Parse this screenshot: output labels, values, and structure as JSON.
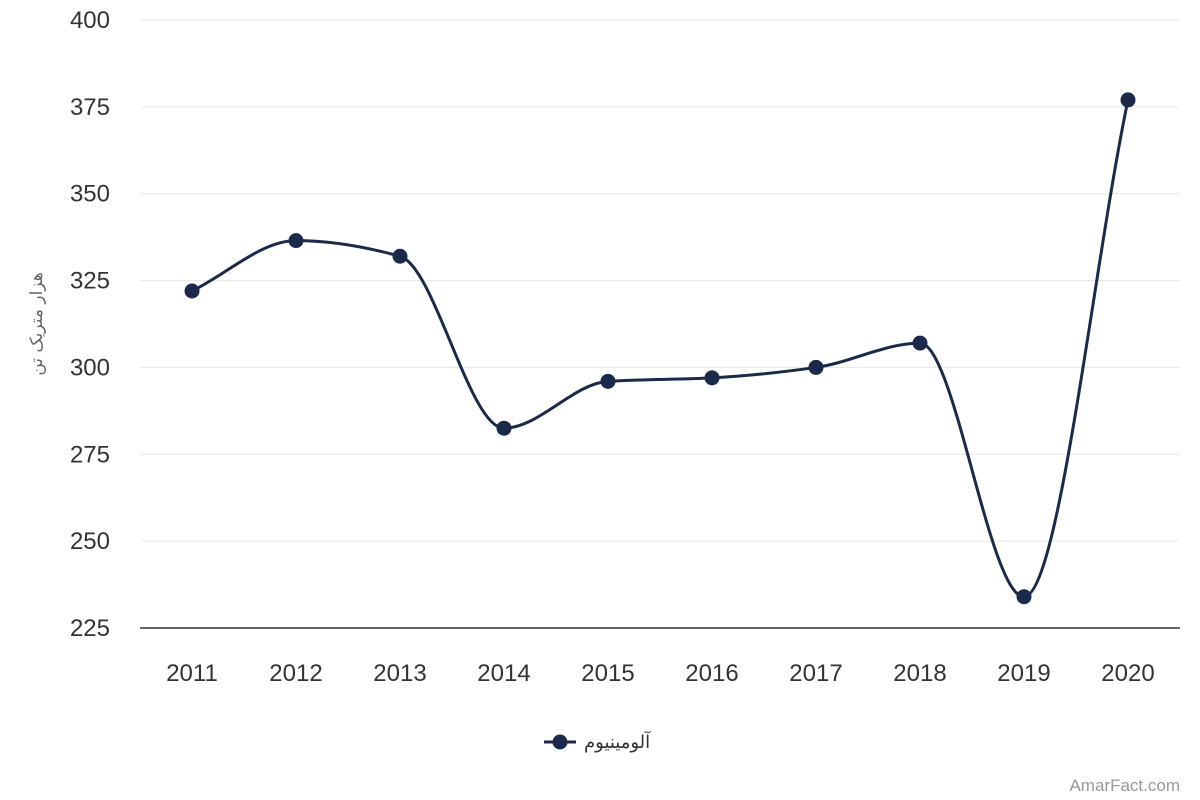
{
  "chart_data": {
    "type": "line",
    "title": "",
    "xlabel": "",
    "ylabel": "هزار متریک تن",
    "categories": [
      "2011",
      "2012",
      "2013",
      "2014",
      "2015",
      "2016",
      "2017",
      "2018",
      "2019",
      "2020"
    ],
    "series": [
      {
        "name": "آلومینیوم",
        "values": [
          322,
          336.5,
          332,
          282.5,
          296,
          297,
          300,
          307,
          234,
          377
        ],
        "color": "#1b2a4a"
      }
    ],
    "ylim": [
      225,
      400
    ],
    "yticks": [
      225,
      250,
      275,
      300,
      325,
      350,
      375,
      400
    ],
    "grid": true,
    "legend_position": "bottom-center",
    "smooth": true
  },
  "credit": "AmarFact.com"
}
